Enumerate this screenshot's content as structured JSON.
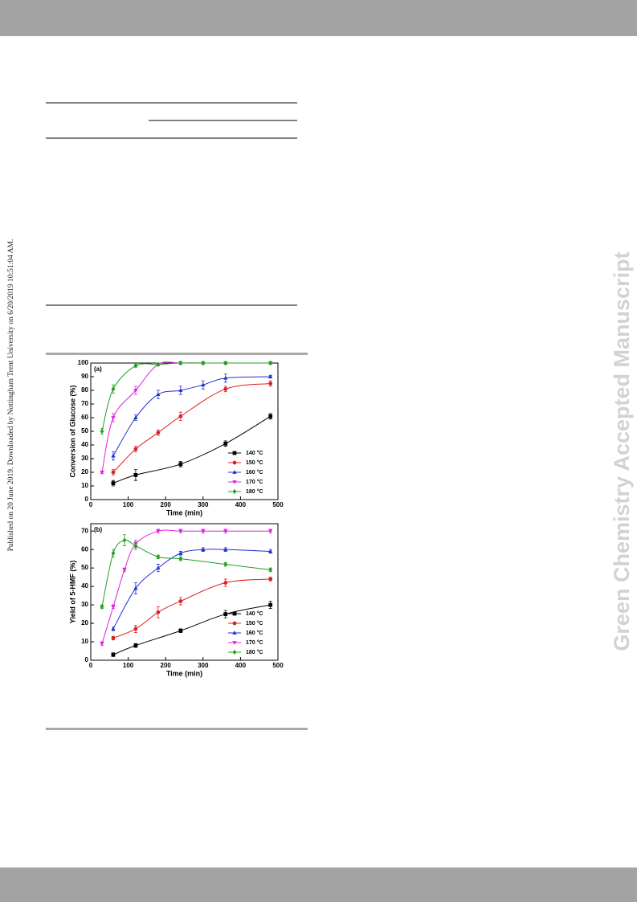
{
  "side_note": "Published on 20 June 2019. Downloaded by Nottingham Trent University on 6/20/2019 10:51:04 AM.",
  "watermark": "Green Chemistry Accepted Manuscript",
  "chart_data": [
    {
      "type": "line",
      "panel_label": "(a)",
      "xlabel": "Time (min)",
      "ylabel": "Conversion of Glucose (%)",
      "xlim": [
        0,
        500
      ],
      "xticks": [
        0,
        100,
        200,
        300,
        400,
        500
      ],
      "ylim": [
        0,
        100
      ],
      "yticks": [
        0,
        10,
        20,
        30,
        40,
        50,
        60,
        70,
        80,
        90,
        100
      ],
      "legend": "lower right",
      "series": [
        {
          "name": "140 °C",
          "color": "#000000",
          "marker": "square",
          "x": [
            60,
            120,
            240,
            360,
            480
          ],
          "values": [
            12,
            18,
            26,
            41,
            61
          ],
          "errors": [
            2,
            4,
            2,
            2,
            2
          ]
        },
        {
          "name": "150 °C",
          "color": "#e02020",
          "marker": "circle",
          "x": [
            60,
            120,
            180,
            240,
            360,
            480
          ],
          "values": [
            20,
            37,
            49,
            61,
            81,
            85
          ],
          "errors": [
            2,
            2,
            2,
            3,
            2,
            2
          ]
        },
        {
          "name": "160 °C",
          "color": "#2030d0",
          "marker": "triangle-up",
          "x": [
            60,
            120,
            180,
            240,
            300,
            360,
            480
          ],
          "values": [
            32,
            60,
            77,
            80,
            84,
            89,
            90
          ],
          "errors": [
            3,
            2,
            3,
            3,
            3,
            3,
            1
          ]
        },
        {
          "name": "170 °C",
          "color": "#e020e0",
          "marker": "triangle-down",
          "x": [
            30,
            60,
            120,
            180,
            240,
            300,
            360,
            480
          ],
          "values": [
            20,
            60,
            80,
            99,
            100,
            100,
            100,
            100
          ],
          "errors": [
            1,
            3,
            3,
            1,
            1,
            1,
            1,
            1
          ]
        },
        {
          "name": "180 °C",
          "color": "#20a020",
          "marker": "diamond",
          "x": [
            30,
            60,
            120,
            180,
            240,
            300,
            360,
            480
          ],
          "values": [
            50,
            81,
            98,
            99,
            100,
            100,
            100,
            100
          ],
          "errors": [
            2,
            3,
            1,
            1,
            1,
            1,
            1,
            1
          ]
        }
      ]
    },
    {
      "type": "line",
      "panel_label": "(b)",
      "xlabel": "Time (min)",
      "ylabel": "Yield of 5-HMF (%)",
      "xlim": [
        0,
        500
      ],
      "xticks": [
        0,
        100,
        200,
        300,
        400,
        500
      ],
      "ylim": [
        0,
        74
      ],
      "yticks": [
        0,
        10,
        20,
        30,
        40,
        50,
        60,
        70
      ],
      "legend": "lower right",
      "series": [
        {
          "name": "140 °C",
          "color": "#000000",
          "marker": "square",
          "x": [
            60,
            120,
            240,
            360,
            480
          ],
          "values": [
            3,
            8,
            16,
            25,
            30
          ],
          "errors": [
            1,
            1,
            1,
            2,
            2
          ]
        },
        {
          "name": "150 °C",
          "color": "#e02020",
          "marker": "circle",
          "x": [
            60,
            120,
            180,
            240,
            360,
            480
          ],
          "values": [
            12,
            17,
            26,
            32,
            42,
            44
          ],
          "errors": [
            1,
            2,
            3,
            2,
            2,
            1
          ]
        },
        {
          "name": "160 °C",
          "color": "#2030d0",
          "marker": "triangle-up",
          "x": [
            60,
            120,
            180,
            240,
            300,
            360,
            480
          ],
          "values": [
            17,
            39,
            50,
            58,
            60,
            60,
            59
          ],
          "errors": [
            1,
            3,
            2,
            1,
            1,
            1,
            1
          ]
        },
        {
          "name": "170 °C",
          "color": "#e020e0",
          "marker": "triangle-down",
          "x": [
            30,
            60,
            90,
            120,
            180,
            240,
            300,
            360,
            480
          ],
          "values": [
            9,
            29,
            49,
            63,
            70,
            70,
            70,
            70,
            70
          ],
          "errors": [
            1,
            1,
            1,
            2,
            1,
            1,
            1,
            1,
            1
          ]
        },
        {
          "name": "180 °C",
          "color": "#20a020",
          "marker": "diamond",
          "x": [
            30,
            60,
            90,
            120,
            180,
            240,
            360,
            480
          ],
          "values": [
            29,
            58,
            65,
            62,
            56,
            55,
            52,
            49
          ],
          "errors": [
            1,
            2,
            3,
            2,
            1,
            1,
            1,
            1
          ]
        }
      ]
    }
  ]
}
